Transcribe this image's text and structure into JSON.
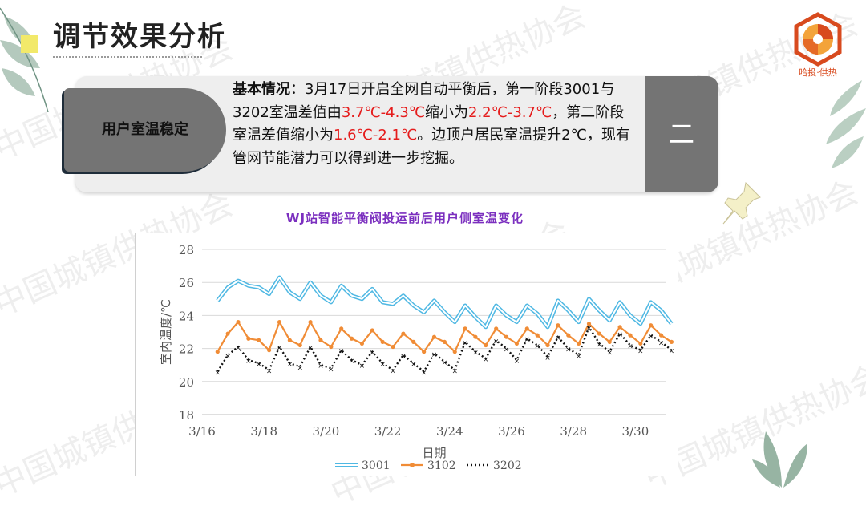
{
  "page": {
    "title": "调节效果分析",
    "logo_text": "哈投·供热",
    "watermark": "中国城镇供热协会"
  },
  "card": {
    "tag": "用户室温稳定",
    "number": "二",
    "lead": "基本情况",
    "p1": "：3月17日开启全网自动平衡后，第一阶段3001与3202室温差值由",
    "r1": "3.7℃-4.3℃",
    "p2": "缩小为",
    "r2": "2.2℃-3.7℃",
    "p3": "，第二阶段室温差值缩小为",
    "r3": "1.6℃-2.1℃",
    "p4": "。边顶户居民室温提升2℃，现有管网节能潜力可以得到进一步挖掘。"
  },
  "chart_data": {
    "type": "line",
    "title": "WJ站智能平衡阀投运前后用户侧室温变化",
    "xlabel": "日期",
    "ylabel": "室内温度/℃",
    "ylim": [
      18,
      28
    ],
    "xlim": [
      "3/16",
      "3/31"
    ],
    "yticks": [
      "18",
      "20",
      "22",
      "24",
      "26",
      "28"
    ],
    "xticks": [
      "3/16",
      "3/18",
      "3/20",
      "3/22",
      "3/24",
      "3/26",
      "3/28",
      "3/30"
    ],
    "legend_position": "bottom",
    "x": [
      "3/16 12:00",
      "3/16 20:00",
      "3/17 04:00",
      "3/17 12:00",
      "3/17 20:00",
      "3/18 04:00",
      "3/18 12:00",
      "3/18 20:00",
      "3/19 04:00",
      "3/19 12:00",
      "3/19 20:00",
      "3/20 04:00",
      "3/20 12:00",
      "3/20 20:00",
      "3/21 04:00",
      "3/21 12:00",
      "3/21 20:00",
      "3/22 04:00",
      "3/22 12:00",
      "3/22 20:00",
      "3/23 04:00",
      "3/23 12:00",
      "3/23 20:00",
      "3/24 04:00",
      "3/24 12:00",
      "3/24 20:00",
      "3/25 04:00",
      "3/25 12:00",
      "3/25 20:00",
      "3/26 04:00",
      "3/26 12:00",
      "3/26 20:00",
      "3/27 04:00",
      "3/27 12:00",
      "3/27 20:00",
      "3/28 04:00",
      "3/28 12:00",
      "3/28 20:00",
      "3/29 04:00",
      "3/29 12:00",
      "3/29 20:00",
      "3/30 04:00",
      "3/30 12:00",
      "3/30 20:00",
      "3/31 04:00"
    ],
    "series": [
      {
        "name": "3001",
        "color": "#4fb8e3",
        "style": "double",
        "values": [
          24.9,
          25.7,
          26.1,
          25.8,
          25.7,
          25.3,
          26.3,
          25.4,
          25.0,
          26.0,
          25.2,
          24.8,
          25.8,
          25.2,
          25.0,
          25.6,
          24.8,
          24.7,
          25.2,
          24.6,
          24.2,
          24.9,
          24.2,
          23.6,
          24.6,
          23.9,
          23.3,
          24.6,
          24.0,
          23.6,
          24.6,
          24.1,
          23.3,
          24.9,
          24.3,
          23.6,
          25.0,
          24.3,
          23.7,
          24.8,
          24.0,
          23.5,
          24.8,
          24.3,
          23.5
        ]
      },
      {
        "name": "3102",
        "color": "#f08c36",
        "style": "marker",
        "values": [
          21.8,
          22.9,
          23.6,
          22.6,
          22.5,
          21.9,
          23.6,
          22.5,
          22.2,
          23.6,
          22.5,
          22.1,
          23.2,
          22.6,
          22.3,
          23.1,
          22.4,
          22.1,
          22.9,
          22.4,
          21.8,
          22.7,
          22.4,
          21.8,
          23.2,
          22.7,
          22.2,
          23.2,
          22.7,
          22.3,
          23.2,
          22.8,
          22.2,
          23.4,
          22.8,
          22.3,
          23.5,
          22.9,
          22.4,
          23.3,
          22.8,
          22.3,
          23.4,
          22.8,
          22.4
        ]
      },
      {
        "name": "3202",
        "color": "#111111",
        "style": "dotted",
        "values": [
          20.6,
          21.6,
          22.1,
          21.3,
          21.1,
          20.7,
          22.1,
          21.1,
          20.9,
          22.1,
          21.0,
          20.8,
          21.9,
          21.3,
          21.0,
          21.8,
          21.1,
          20.7,
          21.6,
          21.1,
          20.6,
          21.7,
          21.2,
          20.7,
          22.4,
          21.8,
          21.4,
          22.5,
          22.0,
          21.3,
          22.6,
          22.2,
          21.5,
          22.7,
          22.0,
          21.6,
          23.3,
          22.3,
          21.8,
          22.9,
          22.2,
          21.9,
          22.8,
          22.4,
          21.9
        ]
      }
    ]
  }
}
